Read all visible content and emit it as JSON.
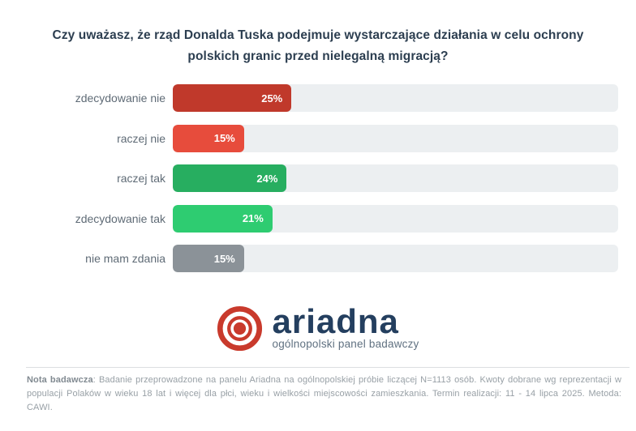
{
  "title": {
    "lines": [
      "Czy uważasz, że rząd Donalda Tuska podejmuje wystarczające działania w celu ochrony",
      "polskich granic przed nielegalną migracją?"
    ]
  },
  "chart_data": {
    "type": "bar",
    "orientation": "horizontal",
    "title": "Czy uważasz, że rząd Donalda Tuska podejmuje wystarczające działania w celu ochrony polskich granic przed nielegalną migracją?",
    "categories": [
      "zdecydowanie nie",
      "raczej nie",
      "raczej tak",
      "zdecydowanie tak",
      "nie mam zdania"
    ],
    "values": [
      25,
      15,
      24,
      21,
      15
    ],
    "value_labels": [
      "25%",
      "15%",
      "24%",
      "21%",
      "15%"
    ],
    "bar_colors": [
      "#c0392b",
      "#e74c3c",
      "#27ae60",
      "#2ecc71",
      "#8b9298"
    ],
    "track_color": "#eceff1",
    "xlim": [
      0,
      100
    ],
    "grid": false,
    "legend": false,
    "value_label_position": "inside-end"
  },
  "logo": {
    "name": "ariadna",
    "subtitle": "ogólnopolski panel badawczy",
    "mark_color": "#c93a2c",
    "name_color": "#243f5f",
    "subtitle_color": "#607181"
  },
  "footer": {
    "label": "Nota badawcza",
    "text": ": Badanie przeprowadzone na panelu Ariadna na ogólnopolskiej próbie liczącej N=1113 osób. Kwoty dobrane wg reprezentacji w populacji Polaków w wieku 18 lat i więcej dla płci, wieku i wielkości miejscowości zamieszkania. Termin realizacji: 11 - 14 lipca 2025. Metoda: CAWI."
  }
}
